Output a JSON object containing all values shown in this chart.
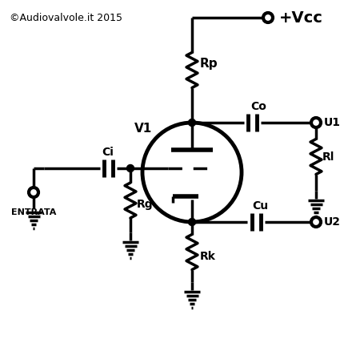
{
  "copyright": "©Audiovalvole.it 2015",
  "vcc_label": "+Vcc",
  "entrata_label": "ENTRATA",
  "bg_color": "#ffffff",
  "line_color": "#000000",
  "lw": 2.5
}
